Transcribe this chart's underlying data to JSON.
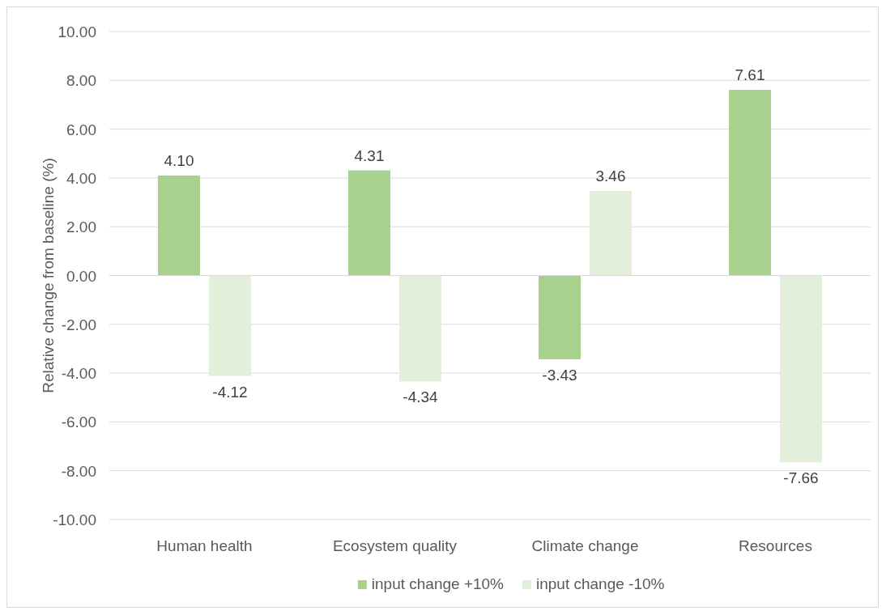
{
  "chart_data": {
    "type": "bar",
    "ylabel": "Relative change from baseline (%)",
    "categories": [
      "Human health",
      "Ecosystem quality",
      "Climate change",
      "Resources"
    ],
    "series": [
      {
        "name": "input change +10%",
        "color": "#a9d18e",
        "values": [
          4.1,
          4.31,
          -3.43,
          7.61
        ],
        "value_labels": [
          "4.10",
          "4.31",
          "-3.43",
          "7.61"
        ]
      },
      {
        "name": "input change -10%",
        "color": "#e2efda",
        "values": [
          -4.12,
          -4.34,
          3.46,
          -7.66
        ],
        "value_labels": [
          "-4.12",
          "-4.34",
          "3.46",
          "-7.66"
        ]
      }
    ],
    "ylim": [
      -10,
      10
    ],
    "yticks": [
      {
        "value": -10,
        "label": "-10.00"
      },
      {
        "value": -8,
        "label": "-8.00"
      },
      {
        "value": -6,
        "label": "-6.00"
      },
      {
        "value": -4,
        "label": "-4.00"
      },
      {
        "value": -2,
        "label": "-2.00"
      },
      {
        "value": 0,
        "label": "0.00"
      },
      {
        "value": 2,
        "label": "2.00"
      },
      {
        "value": 4,
        "label": "4.00"
      },
      {
        "value": 6,
        "label": "6.00"
      },
      {
        "value": 8,
        "label": "8.00"
      },
      {
        "value": 10,
        "label": "10.00"
      }
    ],
    "grid": "y",
    "legend": "bottom"
  }
}
